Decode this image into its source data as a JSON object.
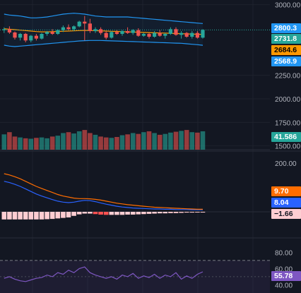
{
  "colors": {
    "background": "#131722",
    "grid": "#1e222d",
    "up": "#26a69a",
    "down": "#ef5350",
    "bollinger": "#2196f3",
    "bollinger_basis": "#ff9800",
    "macd_line": "#2962ff",
    "signal_line": "#ff6d00",
    "rsi": "#7e57c2",
    "axis_text": "#b2b5be"
  },
  "price_axis": {
    "ticks": [
      "3000.00",
      "2250.00",
      "2000.00",
      "1750.00",
      "1500.00"
    ]
  },
  "macd_axis": {
    "ticks": [
      "200.00"
    ]
  },
  "rsi_axis": {
    "ticks": [
      "80.00",
      "60.00",
      "40.00"
    ]
  },
  "badges": {
    "bb_upper": "2800.3",
    "last_price": "2731.8",
    "bb_basis": "2684.6",
    "bb_lower": "2568.9",
    "volume": "41.586",
    "signal": "9.70",
    "macd": "8.04",
    "histogram": "−1.66",
    "rsi": "55.78"
  },
  "chart_data": {
    "type": "candlestick",
    "price_panel": {
      "ohlc": [
        [
          2730,
          2760,
          2700,
          2740
        ],
        [
          2740,
          2770,
          2690,
          2705
        ],
        [
          2705,
          2715,
          2630,
          2650
        ],
        [
          2650,
          2700,
          2620,
          2690
        ],
        [
          2690,
          2700,
          2600,
          2620
        ],
        [
          2620,
          2680,
          2600,
          2670
        ],
        [
          2670,
          2690,
          2620,
          2640
        ],
        [
          2640,
          2700,
          2630,
          2690
        ],
        [
          2690,
          2720,
          2670,
          2710
        ],
        [
          2710,
          2740,
          2680,
          2690
        ],
        [
          2690,
          2740,
          2680,
          2730
        ],
        [
          2730,
          2780,
          2710,
          2760
        ],
        [
          2760,
          2790,
          2730,
          2740
        ],
        [
          2740,
          2780,
          2720,
          2770
        ],
        [
          2770,
          2830,
          2760,
          2820
        ],
        [
          2820,
          2880,
          2620,
          2800
        ],
        [
          2800,
          2850,
          2700,
          2720
        ],
        [
          2720,
          2760,
          2700,
          2740
        ],
        [
          2740,
          2760,
          2680,
          2700
        ],
        [
          2700,
          2720,
          2630,
          2650
        ],
        [
          2650,
          2720,
          2640,
          2710
        ],
        [
          2710,
          2730,
          2680,
          2690
        ],
        [
          2690,
          2730,
          2670,
          2720
        ],
        [
          2720,
          2760,
          2690,
          2700
        ],
        [
          2700,
          2740,
          2680,
          2730
        ],
        [
          2730,
          2750,
          2660,
          2670
        ],
        [
          2670,
          2700,
          2660,
          2690
        ],
        [
          2690,
          2700,
          2640,
          2660
        ],
        [
          2660,
          2720,
          2650,
          2700
        ],
        [
          2700,
          2730,
          2660,
          2670
        ],
        [
          2670,
          2700,
          2640,
          2690
        ],
        [
          2690,
          2760,
          2680,
          2740
        ],
        [
          2740,
          2760,
          2670,
          2680
        ],
        [
          2680,
          2720,
          2640,
          2700
        ],
        [
          2700,
          2710,
          2650,
          2660
        ],
        [
          2660,
          2720,
          2640,
          2700
        ],
        [
          2700,
          2720,
          2640,
          2650
        ],
        [
          2650,
          2740,
          2640,
          2732
        ]
      ],
      "bb_upper": [
        2900,
        2890,
        2885,
        2880,
        2870,
        2860,
        2860,
        2865,
        2870,
        2880,
        2890,
        2900,
        2905,
        2910,
        2905,
        2900,
        2890,
        2880,
        2875,
        2870,
        2870,
        2870,
        2870,
        2870,
        2865,
        2860,
        2855,
        2850,
        2845,
        2840,
        2835,
        2830,
        2825,
        2820,
        2815,
        2810,
        2805,
        2800
      ],
      "bb_basis": [
        2745,
        2740,
        2735,
        2730,
        2725,
        2720,
        2715,
        2712,
        2712,
        2714,
        2716,
        2718,
        2720,
        2722,
        2725,
        2727,
        2726,
        2724,
        2722,
        2720,
        2718,
        2716,
        2714,
        2712,
        2710,
        2708,
        2706,
        2704,
        2702,
        2700,
        2698,
        2696,
        2694,
        2692,
        2690,
        2688,
        2686,
        2685
      ],
      "bb_lower": [
        2570,
        2560,
        2555,
        2560,
        2565,
        2570,
        2575,
        2580,
        2585,
        2590,
        2595,
        2600,
        2605,
        2610,
        2615,
        2618,
        2620,
        2620,
        2620,
        2618,
        2616,
        2614,
        2612,
        2610,
        2608,
        2606,
        2604,
        2602,
        2600,
        2598,
        2596,
        2594,
        2592,
        2590,
        2585,
        2580,
        2575,
        2569
      ]
    },
    "volume": [
      35,
      40,
      30,
      28,
      26,
      25,
      27,
      28,
      26,
      30,
      32,
      38,
      40,
      37,
      42,
      45,
      38,
      34,
      30,
      28,
      27,
      29,
      33,
      35,
      38,
      36,
      40,
      42,
      38,
      34,
      36,
      39,
      41,
      43,
      45,
      40,
      39,
      42
    ],
    "macd_panel": {
      "macd": [
        120,
        115,
        108,
        100,
        90,
        80,
        70,
        62,
        55,
        48,
        42,
        38,
        36,
        38,
        42,
        45,
        44,
        40,
        35,
        30,
        26,
        22,
        19,
        17,
        15,
        14,
        13,
        12,
        11,
        11,
        10,
        10,
        9,
        9,
        9,
        8,
        8,
        8
      ],
      "signal": [
        150,
        145,
        138,
        130,
        120,
        110,
        100,
        92,
        84,
        76,
        68,
        62,
        58,
        54,
        52,
        52,
        51,
        49,
        46,
        42,
        38,
        34,
        31,
        28,
        26,
        24,
        22,
        20,
        18,
        17,
        16,
        15,
        14,
        13,
        12,
        11,
        10,
        10
      ],
      "histogram": [
        -30,
        -30,
        -30,
        -30,
        -30,
        -30,
        -30,
        -30,
        -29,
        -28,
        -26,
        -24,
        -22,
        -16,
        -10,
        -7,
        -7,
        -9,
        -11,
        -12,
        -12,
        -12,
        -12,
        -11,
        -11,
        -10,
        -9,
        -8,
        -7,
        -6,
        -6,
        -5,
        -5,
        -4,
        -3,
        -3,
        -2,
        -2
      ]
    },
    "rsi_panel": {
      "rsi": [
        48,
        50,
        47,
        45,
        44,
        46,
        48,
        49,
        52,
        50,
        55,
        53,
        58,
        55,
        60,
        62,
        55,
        52,
        50,
        48,
        50,
        47,
        52,
        50,
        54,
        48,
        51,
        49,
        53,
        48,
        52,
        50,
        55,
        47,
        51,
        48,
        53,
        56
      ],
      "upper_band": 70,
      "lower_band": 30
    }
  }
}
